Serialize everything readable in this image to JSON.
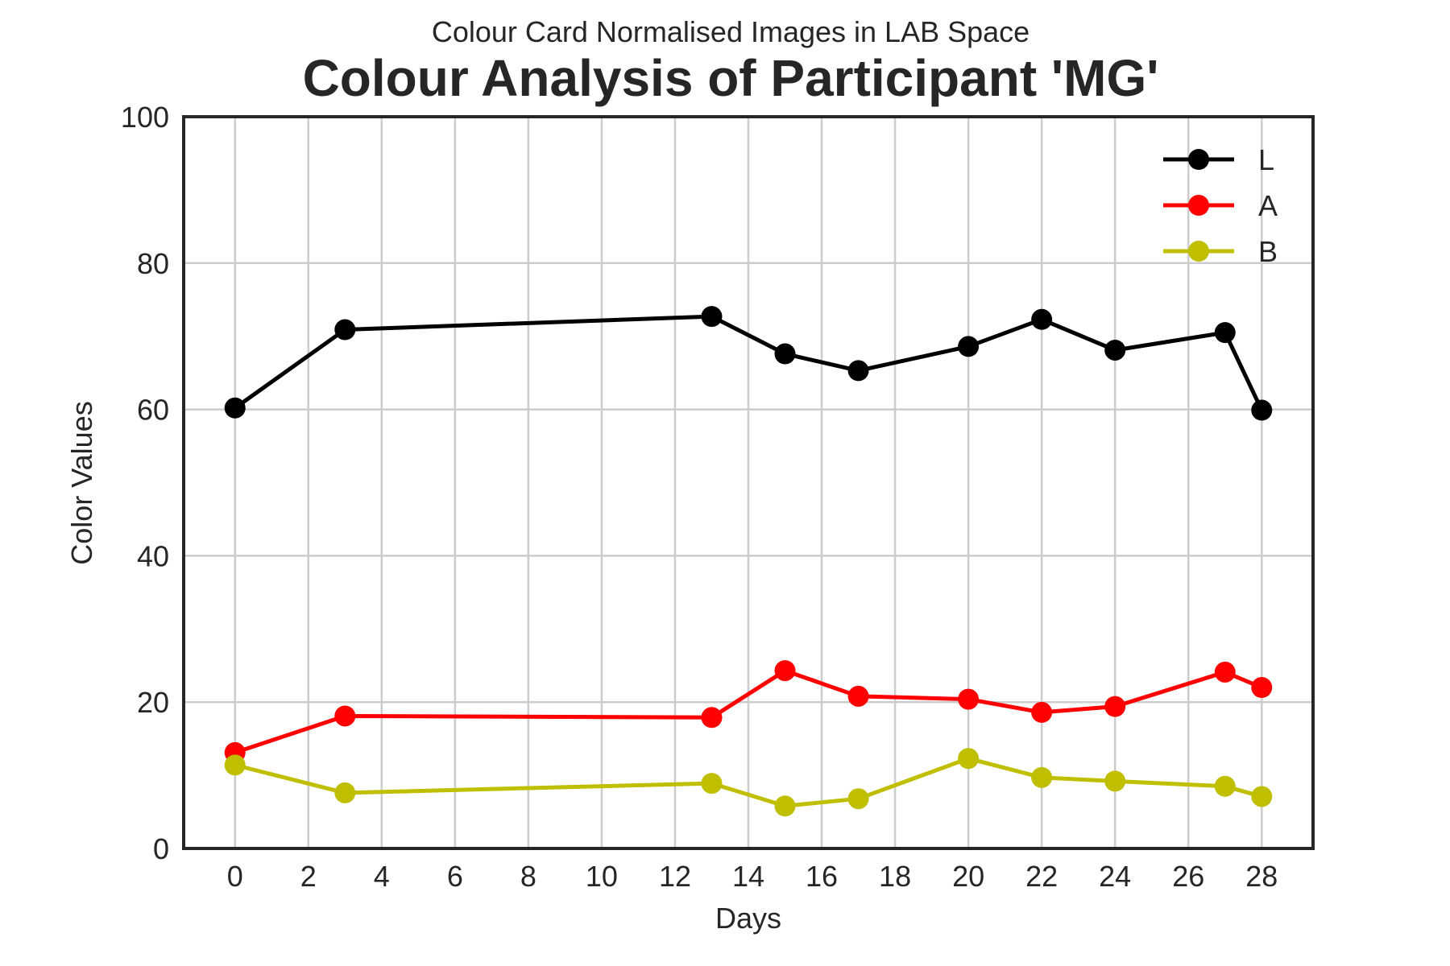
{
  "chart_data": {
    "type": "line",
    "subtitle": "Colour Card Normalised Images in LAB Space",
    "title": "Colour Analysis of Participant 'MG'",
    "xlabel": "Days",
    "ylabel": "Color Values",
    "xlim": [
      -1.4,
      29.4
    ],
    "ylim": [
      0,
      100
    ],
    "xticks": [
      0,
      2,
      4,
      6,
      8,
      10,
      12,
      14,
      16,
      18,
      20,
      22,
      24,
      26,
      28
    ],
    "yticks": [
      0,
      20,
      40,
      60,
      80,
      100
    ],
    "grid": true,
    "legend_position": "top-right",
    "x": [
      0,
      3,
      13,
      15,
      17,
      20,
      22,
      24,
      27,
      28
    ],
    "series": [
      {
        "name": "L",
        "color": "#000000",
        "values": [
          60.2,
          70.9,
          72.7,
          67.6,
          65.3,
          68.6,
          72.3,
          68.1,
          70.5,
          59.9
        ]
      },
      {
        "name": "A",
        "color": "#ff0000",
        "values": [
          13.1,
          18.1,
          17.9,
          24.3,
          20.8,
          20.4,
          18.6,
          19.4,
          24.1,
          22.0
        ]
      },
      {
        "name": "B",
        "color": "#bfbf00",
        "values": [
          11.4,
          7.6,
          8.9,
          5.8,
          6.8,
          12.3,
          9.7,
          9.2,
          8.5,
          7.1
        ]
      }
    ]
  }
}
